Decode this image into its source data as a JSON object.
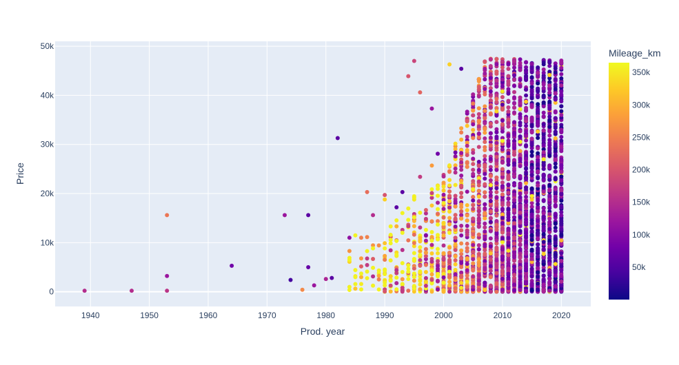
{
  "chart_data": {
    "type": "scatter",
    "title": "",
    "xlabel": "Prod. year",
    "ylabel": "Price",
    "xlim": [
      1934,
      2025
    ],
    "ylim": [
      -3000,
      51000
    ],
    "x_ticks": [
      1940,
      1950,
      1960,
      1970,
      1980,
      1990,
      2000,
      2010,
      2020
    ],
    "x_tick_labels": [
      "1940",
      "1950",
      "1960",
      "1970",
      "1980",
      "1990",
      "2000",
      "2010",
      "2020"
    ],
    "y_ticks": [
      0,
      10000,
      20000,
      30000,
      40000,
      50000
    ],
    "y_tick_labels": [
      "0",
      "10k",
      "20k",
      "30k",
      "40k",
      "50k"
    ],
    "grid": true,
    "background_color": "#e5ecf6",
    "colorbar": {
      "title": "Mileage_km",
      "range": [
        0,
        365000
      ],
      "ticks": [
        50000,
        100000,
        150000,
        200000,
        250000,
        300000,
        350000
      ],
      "tick_labels": [
        "50k",
        "100k",
        "150k",
        "200k",
        "250k",
        "300k",
        "350k"
      ],
      "colorscale": [
        "#0d0887",
        "#46039f",
        "#7201a8",
        "#9c179e",
        "#bd3786",
        "#d8576b",
        "#ed7953",
        "#fb9f3a",
        "#fdca26",
        "#f0f921"
      ]
    },
    "sample_points": [
      {
        "x": 1939,
        "y": 200,
        "mileage": 150000
      },
      {
        "x": 1947,
        "y": 200,
        "mileage": 150000
      },
      {
        "x": 1953,
        "y": 15600,
        "mileage": 240000
      },
      {
        "x": 1953,
        "y": 3200,
        "mileage": 120000
      },
      {
        "x": 1953,
        "y": 200,
        "mileage": 160000
      },
      {
        "x": 1964,
        "y": 5300,
        "mileage": 80000
      },
      {
        "x": 1973,
        "y": 15600,
        "mileage": 120000
      },
      {
        "x": 1974,
        "y": 2400,
        "mileage": 40000
      },
      {
        "x": 1976,
        "y": 400,
        "mileage": 260000
      },
      {
        "x": 1977,
        "y": 15600,
        "mileage": 60000
      },
      {
        "x": 1977,
        "y": 5000,
        "mileage": 70000
      },
      {
        "x": 1978,
        "y": 1300,
        "mileage": 120000
      },
      {
        "x": 1980,
        "y": 2600,
        "mileage": 140000
      },
      {
        "x": 1981,
        "y": 2800,
        "mileage": 60000
      },
      {
        "x": 1982,
        "y": 31300,
        "mileage": 60000
      },
      {
        "x": 1984,
        "y": 11000,
        "mileage": 110000
      },
      {
        "x": 1986,
        "y": 11000,
        "mileage": 250000
      },
      {
        "x": 1987,
        "y": 20300,
        "mileage": 230000
      },
      {
        "x": 1988,
        "y": 15600,
        "mileage": 150000
      },
      {
        "x": 1990,
        "y": 19700,
        "mileage": 200000
      },
      {
        "x": 1990,
        "y": 18800,
        "mileage": 330000
      },
      {
        "x": 1992,
        "y": 17200,
        "mileage": 60000
      },
      {
        "x": 1993,
        "y": 20300,
        "mileage": 60000
      },
      {
        "x": 1994,
        "y": 43900,
        "mileage": 200000
      },
      {
        "x": 1995,
        "y": 47000,
        "mileage": 180000
      },
      {
        "x": 1996,
        "y": 40600,
        "mileage": 220000
      },
      {
        "x": 1996,
        "y": 23400,
        "mileage": 170000
      },
      {
        "x": 1998,
        "y": 37300,
        "mileage": 120000
      },
      {
        "x": 1998,
        "y": 25700,
        "mileage": 280000
      },
      {
        "x": 1999,
        "y": 28100,
        "mileage": 80000
      },
      {
        "x": 2001,
        "y": 46300,
        "mileage": 330000
      },
      {
        "x": 2003,
        "y": 45400,
        "mileage": 60000
      }
    ]
  }
}
